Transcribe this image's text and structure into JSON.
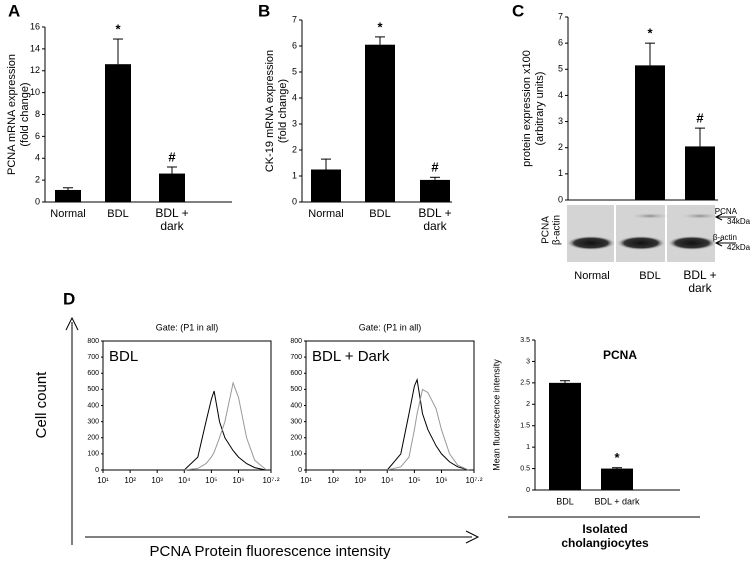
{
  "chart_data": [
    {
      "type": "bar",
      "panel_label": "A",
      "ylabel": [
        "PCNA mRNA expression",
        "(fold change)"
      ],
      "categories": [
        "Normal",
        "BDL",
        [
          "BDL +",
          "dark"
        ]
      ],
      "values": [
        1.1,
        12.6,
        2.6
      ],
      "errors": [
        0.2,
        2.3,
        0.6
      ],
      "value_annotations": [
        null,
        "*",
        "#"
      ],
      "color": "#000000",
      "ylim": [
        0,
        16
      ],
      "yticks": [
        0,
        2,
        4,
        6,
        8,
        10,
        12,
        14,
        16
      ]
    },
    {
      "type": "bar",
      "panel_label": "B",
      "ylabel": [
        "CK-19 mRNA expression",
        "(fold change)"
      ],
      "categories": [
        "Normal",
        "BDL",
        [
          "BDL +",
          "dark"
        ]
      ],
      "values": [
        1.25,
        6.05,
        0.85
      ],
      "errors": [
        0.4,
        0.3,
        0.1
      ],
      "value_annotations": [
        null,
        "*",
        "#"
      ],
      "color": "#000000",
      "ylim": [
        0,
        7
      ],
      "yticks": [
        0,
        1,
        2,
        3,
        4,
        5,
        6,
        7
      ]
    },
    {
      "type": "bar",
      "panel_label": "C",
      "ylabel": [
        "protein expression x100",
        "(arbitrary units)"
      ],
      "categories": [
        "Normal",
        "BDL",
        [
          "BDL +",
          "dark"
        ]
      ],
      "values": [
        0,
        5.15,
        2.05
      ],
      "errors": [
        null,
        0.85,
        0.7
      ],
      "value_annotations": [
        null,
        "*",
        "#"
      ],
      "color": "#000000",
      "ylim": [
        0,
        7
      ],
      "yticks": [
        0,
        1,
        2,
        3,
        4,
        5,
        6,
        7
      ],
      "blot_labels": {
        "left": [
          "PCNA",
          "β-actin"
        ],
        "right": [
          [
            "PCNA",
            "34kDa"
          ],
          [
            "β-actin",
            "42kDa"
          ]
        ]
      }
    },
    {
      "type": "line",
      "panel_label": "D",
      "ylabel": "Cell count",
      "xlabel": "PCNA Protein fluorescence intensity",
      "title": "Gate: (P1 in all)",
      "label": "BDL",
      "xscale": "log",
      "x": [
        10000,
        31623,
        63096,
        100000,
        125893,
        199526,
        316228,
        630957,
        1000000,
        1995262,
        3981072,
        10000000
      ],
      "series": [
        {
          "color": "#000000",
          "values": [
            0,
            80,
            300,
            440,
            490,
            300,
            200,
            120,
            80,
            40,
            15,
            0
          ]
        },
        {
          "color": "#999999",
          "values": [
            0,
            10,
            40,
            80,
            110,
            200,
            300,
            540,
            450,
            200,
            60,
            5
          ]
        }
      ],
      "xlim": [
        10,
        15848932
      ],
      "xticks": [
        {
          "value": 10,
          "label": "10¹"
        },
        {
          "value": 100,
          "label": "10²"
        },
        {
          "value": 1000,
          "label": "10³"
        },
        {
          "value": 10000,
          "label": "10⁴"
        },
        {
          "value": 100000,
          "label": "10⁵"
        },
        {
          "value": 1000000,
          "label": "10⁶"
        },
        {
          "value": 15848932,
          "label": "10⁷·²"
        }
      ],
      "ylim": [
        0,
        800
      ],
      "yticks": [
        0,
        100,
        200,
        300,
        400,
        500,
        600,
        700,
        800
      ]
    },
    {
      "type": "line",
      "title": "Gate: (P1 in all)",
      "label": "BDL + Dark",
      "xscale": "log",
      "x": [
        10000,
        31623,
        63096,
        100000,
        125893,
        199526,
        316228,
        630957,
        1000000,
        1995262,
        3981072,
        10000000
      ],
      "series": [
        {
          "color": "#000000",
          "values": [
            0,
            100,
            350,
            520,
            560,
            350,
            250,
            150,
            100,
            50,
            20,
            0
          ]
        },
        {
          "color": "#999999",
          "values": [
            0,
            20,
            80,
            250,
            350,
            500,
            480,
            380,
            250,
            100,
            30,
            0
          ]
        }
      ],
      "xlim": [
        10,
        15848932
      ],
      "xticks": [
        {
          "value": 10,
          "label": "10¹"
        },
        {
          "value": 100,
          "label": "10²"
        },
        {
          "value": 1000,
          "label": "10³"
        },
        {
          "value": 10000,
          "label": "10⁴"
        },
        {
          "value": 100000,
          "label": "10⁵"
        },
        {
          "value": 1000000,
          "label": "10⁶"
        },
        {
          "value": 15848932,
          "label": "10⁷·²"
        }
      ],
      "ylim": [
        0,
        800
      ],
      "yticks": [
        0,
        100,
        200,
        300,
        400,
        500,
        600,
        700,
        800
      ]
    },
    {
      "type": "bar",
      "title": "PCNA",
      "ylabel": [
        "Mean fluorescence intensity"
      ],
      "categories": [
        "BDL",
        "BDL + dark"
      ],
      "values": [
        2.5,
        0.5
      ],
      "errors": [
        0.05,
        0.02
      ],
      "value_annotations": [
        null,
        "*"
      ],
      "color": "#000000",
      "ylim": [
        0,
        3.5
      ],
      "yticks": [
        0,
        0.5,
        1,
        1.5,
        2,
        2.5,
        3,
        3.5
      ],
      "footer": [
        "Isolated",
        "cholangiocytes"
      ]
    }
  ]
}
